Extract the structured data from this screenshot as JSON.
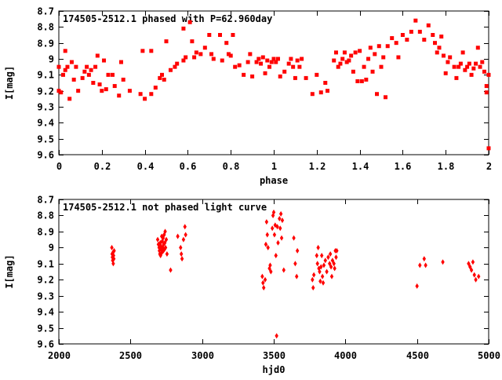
{
  "chart_data": [
    {
      "type": "scatter",
      "title": "174505-2512.1 phased with P=62.960day",
      "xlabel": "phase",
      "ylabel": "I[mag]",
      "xlim": [
        0,
        2
      ],
      "ylim": [
        9.6,
        8.7
      ],
      "y_inverted": true,
      "grid": false,
      "marker": "filled-square",
      "marker_color": "#ff0000",
      "xticks": [
        "0",
        "0.2",
        "0.4",
        "0.6",
        "0.8",
        "1",
        "1.2",
        "1.4",
        "1.6",
        "1.8",
        "2"
      ],
      "yticks": [
        "8.7",
        "8.8",
        "8.9",
        "9",
        "9.1",
        "9.2",
        "9.3",
        "9.4",
        "9.5",
        "9.6"
      ],
      "points": [
        [
          0.0,
          9.05
        ],
        [
          0.0,
          9.2
        ],
        [
          0.01,
          9.21
        ],
        [
          0.02,
          9.1
        ],
        [
          0.03,
          8.95
        ],
        [
          0.03,
          9.07
        ],
        [
          0.04,
          9.05
        ],
        [
          0.05,
          9.25
        ],
        [
          0.06,
          9.02
        ],
        [
          0.07,
          9.13
        ],
        [
          0.08,
          9.05
        ],
        [
          0.09,
          9.2
        ],
        [
          0.11,
          9.12
        ],
        [
          0.12,
          9.08
        ],
        [
          0.13,
          9.05
        ],
        [
          0.14,
          9.1
        ],
        [
          0.15,
          9.07
        ],
        [
          0.16,
          9.15
        ],
        [
          0.17,
          9.05
        ],
        [
          0.18,
          8.98
        ],
        [
          0.19,
          9.16
        ],
        [
          0.2,
          9.2
        ],
        [
          0.21,
          9.01
        ],
        [
          0.22,
          9.19
        ],
        [
          0.23,
          9.1
        ],
        [
          0.25,
          9.1
        ],
        [
          0.26,
          9.17
        ],
        [
          0.28,
          9.23
        ],
        [
          0.29,
          9.02
        ],
        [
          0.3,
          9.13
        ],
        [
          0.33,
          9.2
        ],
        [
          0.38,
          9.22
        ],
        [
          0.39,
          8.95
        ],
        [
          0.4,
          9.25
        ],
        [
          0.43,
          8.95
        ],
        [
          0.43,
          9.22
        ],
        [
          0.45,
          9.18
        ],
        [
          0.47,
          9.12
        ],
        [
          0.48,
          9.1
        ],
        [
          0.49,
          9.13
        ],
        [
          0.5,
          8.89
        ],
        [
          0.52,
          9.07
        ],
        [
          0.54,
          9.05
        ],
        [
          0.55,
          9.03
        ],
        [
          0.58,
          8.81
        ],
        [
          0.58,
          9.01
        ],
        [
          0.59,
          8.99
        ],
        [
          0.61,
          8.77
        ],
        [
          0.62,
          8.89
        ],
        [
          0.63,
          8.99
        ],
        [
          0.64,
          8.96
        ],
        [
          0.66,
          8.97
        ],
        [
          0.68,
          8.93
        ],
        [
          0.7,
          8.85
        ],
        [
          0.71,
          8.97
        ],
        [
          0.72,
          9.0
        ],
        [
          0.75,
          8.85
        ],
        [
          0.76,
          9.01
        ],
        [
          0.78,
          8.9
        ],
        [
          0.79,
          8.97
        ],
        [
          0.8,
          8.98
        ],
        [
          0.81,
          8.85
        ],
        [
          0.82,
          9.05
        ],
        [
          0.84,
          9.04
        ],
        [
          0.86,
          9.1
        ],
        [
          0.88,
          9.02
        ],
        [
          0.89,
          8.97
        ],
        [
          0.9,
          9.11
        ],
        [
          0.92,
          9.02
        ],
        [
          0.93,
          9.0
        ],
        [
          0.94,
          9.03
        ],
        [
          0.95,
          8.99
        ],
        [
          0.96,
          9.09
        ],
        [
          0.97,
          9.01
        ],
        [
          0.98,
          9.05
        ],
        [
          0.99,
          9.02
        ],
        [
          1.0,
          9.0
        ],
        [
          1.01,
          9.02
        ],
        [
          1.02,
          9.0
        ],
        [
          1.03,
          9.11
        ],
        [
          1.05,
          9.08
        ],
        [
          1.07,
          9.03
        ],
        [
          1.08,
          9.0
        ],
        [
          1.09,
          9.05
        ],
        [
          1.1,
          9.12
        ],
        [
          1.11,
          9.01
        ],
        [
          1.12,
          9.05
        ],
        [
          1.13,
          9.0
        ],
        [
          1.15,
          9.12
        ],
        [
          1.18,
          9.22
        ],
        [
          1.2,
          9.1
        ],
        [
          1.22,
          9.21
        ],
        [
          1.24,
          9.15
        ],
        [
          1.25,
          9.2
        ],
        [
          1.28,
          9.01
        ],
        [
          1.29,
          8.96
        ],
        [
          1.3,
          9.05
        ],
        [
          1.31,
          9.03
        ],
        [
          1.32,
          9.0
        ],
        [
          1.33,
          8.96
        ],
        [
          1.34,
          9.02
        ],
        [
          1.35,
          9.01
        ],
        [
          1.36,
          8.98
        ],
        [
          1.37,
          9.08
        ],
        [
          1.38,
          8.96
        ],
        [
          1.39,
          9.14
        ],
        [
          1.4,
          8.95
        ],
        [
          1.41,
          9.14
        ],
        [
          1.42,
          9.05
        ],
        [
          1.43,
          9.13
        ],
        [
          1.44,
          9.0
        ],
        [
          1.45,
          8.93
        ],
        [
          1.46,
          9.08
        ],
        [
          1.47,
          8.97
        ],
        [
          1.48,
          9.22
        ],
        [
          1.49,
          8.92
        ],
        [
          1.5,
          9.05
        ],
        [
          1.51,
          8.99
        ],
        [
          1.52,
          9.24
        ],
        [
          1.53,
          8.92
        ],
        [
          1.55,
          8.87
        ],
        [
          1.57,
          8.9
        ],
        [
          1.58,
          8.99
        ],
        [
          1.6,
          8.85
        ],
        [
          1.62,
          8.88
        ],
        [
          1.64,
          8.83
        ],
        [
          1.66,
          8.76
        ],
        [
          1.68,
          8.83
        ],
        [
          1.7,
          8.88
        ],
        [
          1.72,
          8.79
        ],
        [
          1.74,
          8.85
        ],
        [
          1.75,
          8.9
        ],
        [
          1.76,
          8.96
        ],
        [
          1.77,
          8.93
        ],
        [
          1.78,
          8.86
        ],
        [
          1.79,
          8.98
        ],
        [
          1.8,
          9.09
        ],
        [
          1.81,
          9.02
        ],
        [
          1.82,
          8.99
        ],
        [
          1.84,
          9.05
        ],
        [
          1.85,
          9.12
        ],
        [
          1.86,
          9.05
        ],
        [
          1.87,
          9.03
        ],
        [
          1.88,
          8.96
        ],
        [
          1.89,
          9.07
        ],
        [
          1.9,
          9.05
        ],
        [
          1.91,
          9.03
        ],
        [
          1.92,
          9.1
        ],
        [
          1.93,
          9.06
        ],
        [
          1.94,
          9.03
        ],
        [
          1.95,
          8.93
        ],
        [
          1.96,
          9.05
        ],
        [
          1.97,
          9.02
        ],
        [
          1.98,
          9.08
        ],
        [
          1.99,
          9.21
        ],
        [
          1.99,
          9.17
        ],
        [
          2.0,
          9.1
        ],
        [
          2.0,
          9.56
        ]
      ]
    },
    {
      "type": "scatter",
      "title": "174505-2512.1 not phased light curve",
      "xlabel": "hjd0",
      "ylabel": "I[mag]",
      "xlim": [
        2000,
        5000
      ],
      "ylim": [
        9.6,
        8.7
      ],
      "y_inverted": true,
      "grid": false,
      "marker": "filled-diamond",
      "marker_color": "#ff0000",
      "xticks": [
        "2000",
        "2500",
        "3000",
        "3500",
        "4000",
        "4500",
        "5000"
      ],
      "yticks": [
        "8.7",
        "8.8",
        "8.9",
        "9",
        "9.1",
        "9.2",
        "9.3",
        "9.4",
        "9.5",
        "9.6"
      ],
      "points": [
        [
          2370,
          9.0
        ],
        [
          2372,
          9.04
        ],
        [
          2374,
          9.06
        ],
        [
          2376,
          9.08
        ],
        [
          2378,
          9.03
        ],
        [
          2380,
          9.1
        ],
        [
          2382,
          9.05
        ],
        [
          2384,
          9.07
        ],
        [
          2386,
          9.02
        ],
        [
          2690,
          8.95
        ],
        [
          2695,
          8.98
        ],
        [
          2700,
          9.0
        ],
        [
          2702,
          9.02
        ],
        [
          2705,
          9.04
        ],
        [
          2708,
          8.97
        ],
        [
          2710,
          9.05
        ],
        [
          2712,
          8.99
        ],
        [
          2715,
          9.01
        ],
        [
          2718,
          8.93
        ],
        [
          2720,
          9.03
        ],
        [
          2722,
          8.96
        ],
        [
          2725,
          9.0
        ],
        [
          2728,
          8.94
        ],
        [
          2730,
          9.02
        ],
        [
          2732,
          8.98
        ],
        [
          2735,
          8.92
        ],
        [
          2738,
          9.01
        ],
        [
          2740,
          8.97
        ],
        [
          2742,
          8.9
        ],
        [
          2745,
          9.0
        ],
        [
          2750,
          8.95
        ],
        [
          2755,
          9.04
        ],
        [
          2780,
          9.14
        ],
        [
          2830,
          8.93
        ],
        [
          2850,
          9.0
        ],
        [
          2855,
          9.04
        ],
        [
          2860,
          9.07
        ],
        [
          2870,
          8.95
        ],
        [
          2880,
          8.87
        ],
        [
          2885,
          8.92
        ],
        [
          3420,
          9.18
        ],
        [
          3425,
          9.22
        ],
        [
          3430,
          9.25
        ],
        [
          3440,
          9.2
        ],
        [
          3445,
          8.98
        ],
        [
          3450,
          8.84
        ],
        [
          3455,
          8.92
        ],
        [
          3460,
          9.0
        ],
        [
          3470,
          9.13
        ],
        [
          3475,
          9.11
        ],
        [
          3480,
          9.15
        ],
        [
          3490,
          8.88
        ],
        [
          3495,
          8.8
        ],
        [
          3500,
          8.78
        ],
        [
          3505,
          8.92
        ],
        [
          3510,
          8.86
        ],
        [
          3515,
          9.05
        ],
        [
          3520,
          9.55
        ],
        [
          3525,
          8.87
        ],
        [
          3530,
          8.97
        ],
        [
          3540,
          8.82
        ],
        [
          3545,
          8.88
        ],
        [
          3550,
          8.79
        ],
        [
          3555,
          8.94
        ],
        [
          3560,
          8.83
        ],
        [
          3570,
          9.14
        ],
        [
          3640,
          8.94
        ],
        [
          3650,
          9.1
        ],
        [
          3660,
          9.18
        ],
        [
          3665,
          9.02
        ],
        [
          3770,
          9.2
        ],
        [
          3775,
          9.25
        ],
        [
          3780,
          9.17
        ],
        [
          3800,
          9.05
        ],
        [
          3805,
          9.1
        ],
        [
          3810,
          9.0
        ],
        [
          3815,
          9.13
        ],
        [
          3820,
          9.15
        ],
        [
          3825,
          9.21
        ],
        [
          3830,
          9.12
        ],
        [
          3835,
          9.05
        ],
        [
          3840,
          9.18
        ],
        [
          3845,
          9.22
        ],
        [
          3850,
          9.11
        ],
        [
          3860,
          9.08
        ],
        [
          3870,
          9.15
        ],
        [
          3880,
          9.06
        ],
        [
          3890,
          9.1
        ],
        [
          3895,
          9.04
        ],
        [
          3900,
          9.12
        ],
        [
          3905,
          9.18
        ],
        [
          3910,
          9.08
        ],
        [
          3920,
          9.1
        ],
        [
          3925,
          9.13
        ],
        [
          3930,
          9.02
        ],
        [
          3935,
          9.06
        ],
        [
          3940,
          9.02
        ],
        [
          4500,
          9.24
        ],
        [
          4520,
          9.11
        ],
        [
          4550,
          9.07
        ],
        [
          4560,
          9.11
        ],
        [
          4680,
          9.09
        ],
        [
          4860,
          9.1
        ],
        [
          4870,
          9.12
        ],
        [
          4880,
          9.14
        ],
        [
          4890,
          9.09
        ],
        [
          4900,
          9.17
        ],
        [
          4910,
          9.2
        ],
        [
          4930,
          9.18
        ]
      ]
    }
  ]
}
